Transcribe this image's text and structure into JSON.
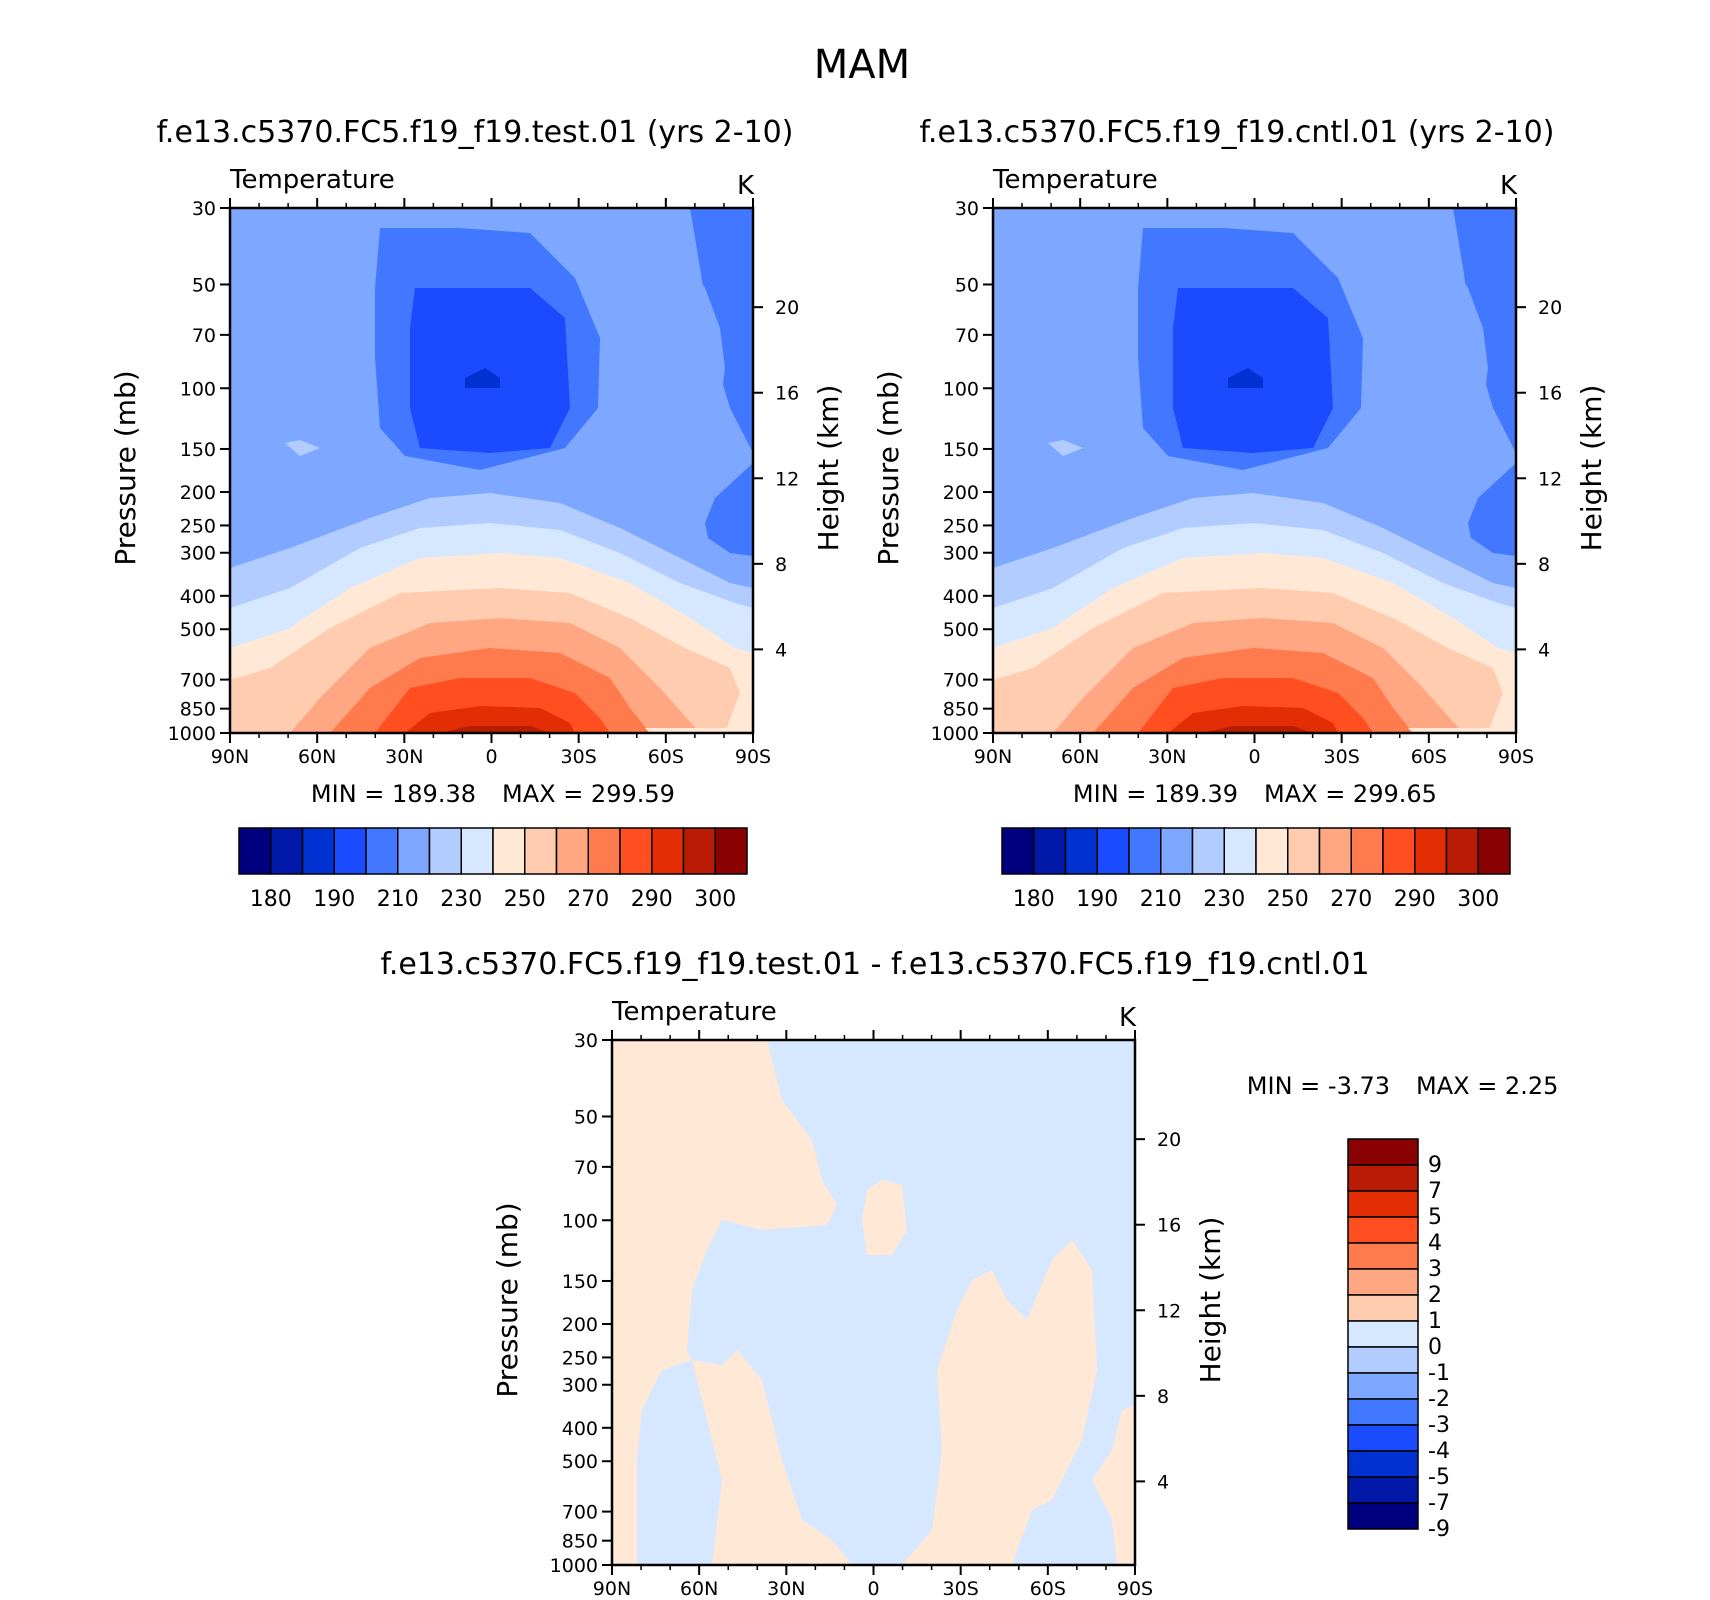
{
  "page": {
    "title": "MAM"
  },
  "palette": {
    "abs": [
      "#00007F",
      "#0019A8",
      "#0032D1",
      "#1A4BFF",
      "#4178FF",
      "#7EA8FF",
      "#B3CCFF",
      "#D6E8FF",
      "#FFE9D6",
      "#FFCCB0",
      "#FFA682",
      "#FF7A4D",
      "#FF4E1F",
      "#E22D05",
      "#B81C04",
      "#8A0202"
    ],
    "diff": [
      "#00007F",
      "#0019A8",
      "#0032D1",
      "#1A4BFF",
      "#4178FF",
      "#7EA8FF",
      "#B3CCFF",
      "#D6E8FF",
      "#FFE9D6",
      "#FFCCB0",
      "#FFA682",
      "#FF7A4D",
      "#FF4E1F",
      "#E22D05",
      "#B81C04",
      "#8A0202"
    ]
  },
  "chart_data": [
    {
      "type": "contour",
      "id": "test",
      "title": "f.e13.c5370.FC5.f19_f19.test.01 (yrs 2-10)",
      "variable": "Temperature",
      "units": "K",
      "ylabel": "Pressure (mb)",
      "ylabel_right": "Height (km)",
      "x_ticks": [
        "90N",
        "60N",
        "30N",
        "0",
        "30S",
        "60S",
        "90S"
      ],
      "y_ticks": [
        30,
        50,
        70,
        100,
        150,
        200,
        250,
        300,
        400,
        500,
        700,
        850,
        1000
      ],
      "height_ticks": [
        20,
        16,
        12,
        8,
        4
      ],
      "min_label": "MIN = 189.38",
      "max_label": "MAX = 299.59",
      "colorbar_labels": [
        "180",
        "190",
        "210",
        "230",
        "250",
        "270",
        "290",
        "300"
      ],
      "ylim": [
        1000,
        30
      ]
    },
    {
      "type": "contour",
      "id": "cntl",
      "title": "f.e13.c5370.FC5.f19_f19.cntl.01 (yrs 2-10)",
      "variable": "Temperature",
      "units": "K",
      "ylabel": "Pressure (mb)",
      "ylabel_right": "Height (km)",
      "x_ticks": [
        "90N",
        "60N",
        "30N",
        "0",
        "30S",
        "60S",
        "90S"
      ],
      "y_ticks": [
        30,
        50,
        70,
        100,
        150,
        200,
        250,
        300,
        400,
        500,
        700,
        850,
        1000
      ],
      "height_ticks": [
        20,
        16,
        12,
        8,
        4
      ],
      "min_label": "MIN = 189.39",
      "max_label": "MAX = 299.65",
      "colorbar_labels": [
        "180",
        "190",
        "210",
        "230",
        "250",
        "270",
        "290",
        "300"
      ],
      "ylim": [
        1000,
        30
      ]
    },
    {
      "type": "contour",
      "id": "diff",
      "title": "f.e13.c5370.FC5.f19_f19.test.01 - f.e13.c5370.FC5.f19_f19.cntl.01",
      "variable": "Temperature",
      "units": "K",
      "ylabel": "Pressure (mb)",
      "ylabel_right": "Height (km)",
      "x_ticks": [
        "90N",
        "60N",
        "30N",
        "0",
        "30S",
        "60S",
        "90S"
      ],
      "y_ticks": [
        30,
        50,
        70,
        100,
        150,
        200,
        250,
        300,
        400,
        500,
        700,
        850,
        1000
      ],
      "height_ticks": [
        20,
        16,
        12,
        8,
        4
      ],
      "min_label": "MIN =   -3.73",
      "max_label": "MAX =    2.25",
      "colorbar_labels": [
        "9",
        "7",
        "5",
        "4",
        "3",
        "2",
        "1",
        "0",
        "-1",
        "-2",
        "-3",
        "-4",
        "-5",
        "-7",
        "-9"
      ],
      "ylim": [
        1000,
        30
      ]
    }
  ]
}
